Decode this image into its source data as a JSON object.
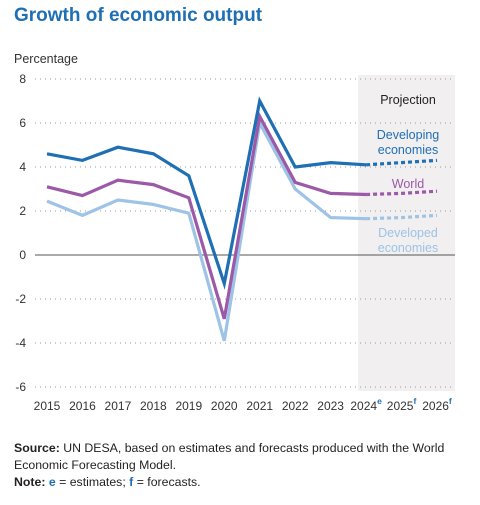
{
  "title": "Growth of economic output",
  "chart_data": {
    "type": "line",
    "ylabel": "Percentage",
    "ylim": [
      -6,
      8
    ],
    "yticks": [
      8,
      6,
      4,
      2,
      0,
      -2,
      -4,
      -6
    ],
    "categories": [
      "2015",
      "2016",
      "2017",
      "2018",
      "2019",
      "2020",
      "2021",
      "2022",
      "2023",
      "2024",
      "2025",
      "2026"
    ],
    "tick_superscripts": [
      "",
      "",
      "",
      "",
      "",
      "",
      "",
      "",
      "",
      "e",
      "f",
      "f"
    ],
    "projection_label": "Projection",
    "projection_from": "2024",
    "grid": "dotted horizontal",
    "series": [
      {
        "name": "Developing economies",
        "name_lines": [
          "Developing",
          "economies"
        ],
        "color": "#1f6fb5",
        "values": [
          4.6,
          4.3,
          4.9,
          4.6,
          3.6,
          -1.3,
          7.0,
          4.0,
          4.2,
          4.1,
          4.2,
          4.3
        ]
      },
      {
        "name": "World",
        "name_lines": [
          "World"
        ],
        "color": "#9b59a8",
        "values": [
          3.1,
          2.7,
          3.4,
          3.2,
          2.6,
          -2.9,
          6.3,
          3.3,
          2.8,
          2.75,
          2.8,
          2.9
        ]
      },
      {
        "name": "Developed economies",
        "name_lines": [
          "Developed",
          "economies"
        ],
        "color": "#9dc3e6",
        "values": [
          2.45,
          1.8,
          2.5,
          2.3,
          1.9,
          -3.9,
          6.0,
          3.0,
          1.7,
          1.65,
          1.7,
          1.8
        ]
      }
    ]
  },
  "footer": {
    "source_label": "Source:",
    "source_text": " UN DESA, based on estimates and forecasts produced with the World Economic Forecasting Model.",
    "note_label": "Note:",
    "note_e": "e",
    "note_mid": " = estimates; ",
    "note_f": "f",
    "note_end": " = forecasts."
  }
}
